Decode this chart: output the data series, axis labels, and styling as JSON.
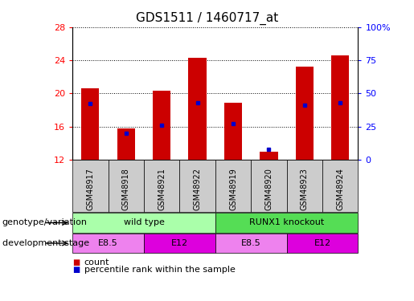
{
  "title": "GDS1511 / 1460717_at",
  "samples": [
    "GSM48917",
    "GSM48918",
    "GSM48921",
    "GSM48922",
    "GSM48919",
    "GSM48920",
    "GSM48923",
    "GSM48924"
  ],
  "count_values": [
    20.6,
    15.8,
    20.3,
    24.3,
    18.9,
    12.9,
    23.2,
    24.6
  ],
  "percentile_values": [
    42,
    20,
    26,
    43,
    27,
    8,
    41,
    43
  ],
  "ylim_left": [
    12,
    28
  ],
  "ylim_right": [
    0,
    100
  ],
  "yticks_left": [
    12,
    16,
    20,
    24,
    28
  ],
  "yticks_right": [
    0,
    25,
    50,
    75,
    100
  ],
  "ytick_labels_right": [
    "0",
    "25",
    "50",
    "75",
    "100%"
  ],
  "groups": [
    {
      "label": "wild type",
      "start": 0,
      "end": 4,
      "color": "#AAFFAA"
    },
    {
      "label": "RUNX1 knockout",
      "start": 4,
      "end": 8,
      "color": "#55DD55"
    }
  ],
  "stages": [
    {
      "label": "E8.5",
      "start": 0,
      "end": 2,
      "color": "#EE82EE"
    },
    {
      "label": "E12",
      "start": 2,
      "end": 4,
      "color": "#DD00DD"
    },
    {
      "label": "E8.5",
      "start": 4,
      "end": 6,
      "color": "#EE82EE"
    },
    {
      "label": "E12",
      "start": 6,
      "end": 8,
      "color": "#DD00DD"
    }
  ],
  "bar_color": "#CC0000",
  "dot_color": "#0000CC",
  "label_row1_text": "genotype/variation",
  "label_row2_text": "development stage",
  "legend_count": "count",
  "legend_pct": "percentile rank within the sample",
  "background_color": "#FFFFFF",
  "plot_bg_color": "#FFFFFF",
  "xtick_bg_color": "#CCCCCC",
  "grid_color": "#000000"
}
